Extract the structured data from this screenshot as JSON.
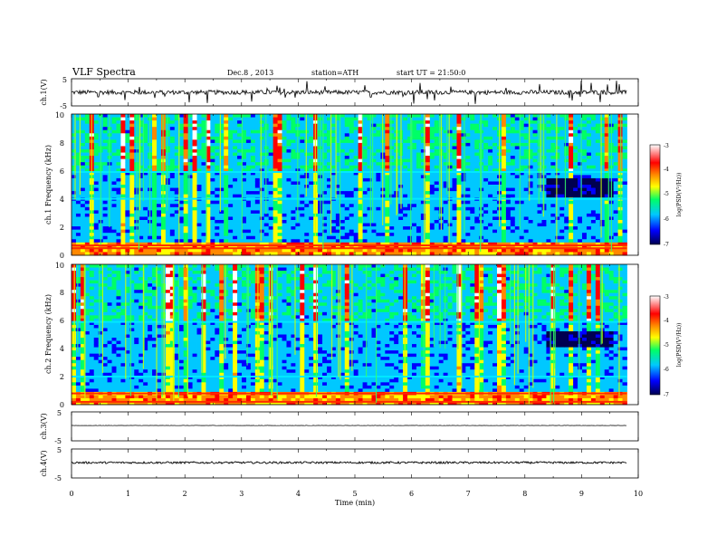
{
  "header": {
    "title": "VLF Spectra",
    "date": "Dec.8 , 2013",
    "station": "station=ATH",
    "start": "start UT = 21:50:0"
  },
  "chart_data": [
    {
      "type": "line",
      "id": "ch1_waveform",
      "ylabel": "ch.1(V)",
      "y_ticks": [
        "5",
        "-5"
      ],
      "ylim": [
        -5,
        5
      ],
      "xlim": [
        0,
        10
      ],
      "signal_end_min": 9.8,
      "baseline_v": 0.0,
      "noise_amplitude_v": 0.8,
      "spike_amplitude_v": 2.5
    },
    {
      "type": "heatmap",
      "id": "ch1_spectrogram",
      "ylabel": "ch.1 Frequency (kHz)",
      "y_ticks": [
        "0",
        "2",
        "4",
        "6",
        "8",
        "10"
      ],
      "ylim": [
        0,
        10
      ],
      "xlim": [
        0,
        10
      ],
      "data_end_min": 9.8,
      "colorbar": {
        "label": "log(PSD(V²/Hz))",
        "ticks": [
          "-3",
          "-4",
          "-5",
          "-6",
          "-7"
        ],
        "range": [
          -7,
          -3
        ]
      },
      "colorscale": [
        "#000050",
        "#0000ff",
        "#00c8ff",
        "#00ff66",
        "#ffff00",
        "#ff8800",
        "#ff0000",
        "#ffffff"
      ],
      "strong_bands_khz": [
        0.5,
        0.7,
        4.0,
        5.9
      ],
      "quiet_band_khz": [
        4.0,
        5.5
      ],
      "quiet_band_time_min": [
        8.4,
        9.6
      ]
    },
    {
      "type": "heatmap",
      "id": "ch2_spectrogram",
      "ylabel": "ch.2 Frequency (kHz)",
      "y_ticks": [
        "0",
        "2",
        "4",
        "6",
        "8",
        "10"
      ],
      "ylim": [
        0,
        10
      ],
      "xlim": [
        0,
        10
      ],
      "data_end_min": 9.8,
      "colorbar": {
        "label": "log(PSD(V²/Hz))",
        "ticks": [
          "-3",
          "-4",
          "-5",
          "-6",
          "-7"
        ],
        "range": [
          -7,
          -3
        ]
      },
      "colorscale": [
        "#000050",
        "#0000ff",
        "#00c8ff",
        "#00ff66",
        "#ffff00",
        "#ff8800",
        "#ff0000",
        "#ffffff"
      ],
      "strong_bands_khz": [
        0.2,
        0.8,
        2.0,
        5.9
      ],
      "quiet_band_khz": [
        4.0,
        5.2
      ],
      "quiet_band_time_min": [
        8.4,
        9.6
      ]
    },
    {
      "type": "line",
      "id": "ch3_waveform",
      "ylabel": "ch.3(V)",
      "y_ticks": [
        "5",
        "-5"
      ],
      "ylim": [
        -5,
        5
      ],
      "xlim": [
        0,
        10
      ],
      "signal_end_min": 9.8,
      "baseline_v": 0.3,
      "noise_amplitude_v": 0.05
    },
    {
      "type": "line",
      "id": "ch4_waveform",
      "ylabel": "ch.4(V)",
      "y_ticks": [
        "5",
        "-5"
      ],
      "ylim": [
        -5,
        5
      ],
      "xlim": [
        0,
        10
      ],
      "signal_end_min": 9.8,
      "baseline_v": 0.3,
      "noise_amplitude_v": 0.35
    }
  ],
  "x_axis": {
    "label": "Time (min)",
    "ticks": [
      "0",
      "1",
      "2",
      "3",
      "4",
      "5",
      "6",
      "7",
      "8",
      "9",
      "10"
    ]
  }
}
